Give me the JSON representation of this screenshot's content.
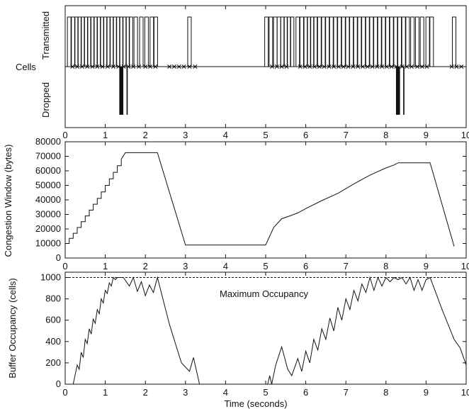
{
  "chart_data": [
    {
      "type": "event-raster",
      "panel": "cells",
      "ylabel_left": "Cells",
      "ylabel_top": "Transmitted",
      "ylabel_bottom": "Dropped",
      "xlim": [
        0,
        10
      ],
      "x_ticks": [
        "0",
        "1",
        "2",
        "3",
        "4",
        "5",
        "6",
        "7",
        "8",
        "9",
        "10"
      ],
      "transmitted_pulses": [
        0.1,
        0.2,
        0.28,
        0.36,
        0.44,
        0.52,
        0.6,
        0.68,
        0.76,
        0.84,
        0.92,
        1.0,
        1.08,
        1.16,
        1.24,
        1.32,
        1.4,
        1.48,
        1.56,
        1.64,
        1.76,
        1.9,
        2.03,
        2.16,
        2.26,
        3.1,
        5.02,
        5.13,
        5.24,
        5.33,
        5.42,
        5.5,
        5.58,
        5.66,
        5.8,
        5.9,
        6.0,
        6.08,
        6.16,
        6.24,
        6.34,
        6.44,
        6.54,
        6.64,
        6.74,
        6.84,
        6.94,
        7.04,
        7.14,
        7.24,
        7.34,
        7.44,
        7.54,
        7.64,
        7.74,
        7.84,
        7.94,
        8.04,
        8.14,
        8.24,
        8.34,
        8.44,
        8.54,
        8.66,
        8.78,
        8.9,
        9.04,
        9.14,
        9.7
      ],
      "dropped_markers": [
        0.18,
        0.3,
        0.42,
        0.55,
        0.68,
        0.8,
        0.93,
        1.06,
        1.2,
        1.33,
        1.46,
        1.58,
        1.7,
        1.84,
        2.0,
        2.12,
        2.25,
        2.6,
        2.72,
        2.84,
        2.96,
        3.1,
        3.24,
        5.16,
        5.28,
        5.4,
        5.52,
        5.86,
        5.98,
        6.1,
        6.22,
        6.34,
        6.46,
        6.58,
        6.7,
        6.82,
        6.94,
        7.06,
        7.18,
        7.3,
        7.42,
        7.54,
        7.66,
        7.78,
        7.9,
        8.02,
        8.14,
        8.26,
        8.4,
        8.52,
        8.64,
        8.78,
        8.9,
        9.02,
        9.64,
        9.76,
        9.88
      ],
      "dropped_bars": [
        {
          "x": [
            1.35,
            1.45
          ],
          "depth": 0.97
        },
        {
          "x": [
            1.53,
            1.56
          ],
          "depth": 0.97
        },
        {
          "x": [
            8.25,
            8.35
          ],
          "depth": 0.97
        },
        {
          "x": [
            8.43,
            8.46
          ],
          "depth": 0.97
        }
      ]
    },
    {
      "type": "line",
      "panel": "cwnd",
      "ylabel": "Congestion Window (bytes)",
      "xlim": [
        0,
        10
      ],
      "ylim": [
        0,
        80000
      ],
      "x_ticks": [
        "0",
        "1",
        "2",
        "3",
        "4",
        "5",
        "6",
        "7",
        "8",
        "9",
        "10"
      ],
      "y_ticks": [
        "0",
        "10000",
        "20000",
        "30000",
        "40000",
        "50000",
        "60000",
        "70000",
        "80000"
      ],
      "series": [
        {
          "x": [
            0,
            0.1,
            0.1,
            0.2,
            0.2,
            0.3,
            0.3,
            0.4,
            0.4,
            0.5,
            0.5,
            0.6,
            0.6,
            0.7,
            0.7,
            0.8,
            0.8,
            0.9,
            0.9,
            1.0,
            1.0,
            1.1,
            1.1,
            1.2,
            1.2,
            1.3,
            1.3,
            1.4,
            1.4,
            1.5,
            2.3,
            3.0,
            5.0,
            5.2,
            5.4,
            5.6,
            5.8,
            6.0,
            6.4,
            6.8,
            7.2,
            7.6,
            8.0,
            8.2,
            8.3,
            9.1,
            9.7
          ],
          "y": [
            10000,
            10000,
            13500,
            13500,
            17000,
            17000,
            21000,
            21000,
            25000,
            25000,
            29000,
            29000,
            33000,
            33000,
            37000,
            37000,
            41000,
            41000,
            45500,
            45500,
            50000,
            50000,
            54500,
            54500,
            59000,
            59000,
            63500,
            63500,
            68000,
            72500,
            72500,
            9000,
            9000,
            21000,
            27000,
            29000,
            31000,
            34000,
            39500,
            44500,
            51000,
            57000,
            62000,
            64000,
            65500,
            65500,
            8000
          ]
        }
      ]
    },
    {
      "type": "line",
      "panel": "buffer",
      "ylabel": "Buffer Occupancy (cells)",
      "xlabel": "Time (seconds)",
      "xlim": [
        0,
        10
      ],
      "ylim": [
        0,
        1050
      ],
      "x_ticks": [
        "0",
        "1",
        "2",
        "3",
        "4",
        "5",
        "6",
        "7",
        "8",
        "9",
        "10"
      ],
      "y_ticks": [
        "0",
        "200",
        "400",
        "600",
        "800",
        "1000"
      ],
      "annotation": "Maximum Occupancy",
      "max_occupancy": 1000,
      "series": [
        {
          "x": [
            0.2,
            0.3,
            0.35,
            0.4,
            0.45,
            0.5,
            0.55,
            0.6,
            0.65,
            0.7,
            0.75,
            0.8,
            0.85,
            0.9,
            0.95,
            1.0,
            1.05,
            1.1,
            1.15,
            1.2,
            1.25,
            1.3,
            1.35,
            1.4,
            1.45,
            1.6,
            1.7,
            1.8,
            1.9,
            2.0,
            2.1,
            2.2,
            2.3,
            2.6,
            2.9,
            3.1,
            3.2,
            3.35,
            5.05,
            5.1,
            5.15,
            5.25,
            5.4,
            5.55,
            5.65,
            5.8,
            5.9,
            6.0,
            6.1,
            6.2,
            6.3,
            6.4,
            6.5,
            6.6,
            6.7,
            6.8,
            6.9,
            7.0,
            7.1,
            7.2,
            7.3,
            7.4,
            7.5,
            7.6,
            7.7,
            7.8,
            7.9,
            8.0,
            8.1,
            8.2,
            8.3,
            8.4,
            8.5,
            8.6,
            8.7,
            8.8,
            8.9,
            9.0,
            9.1,
            9.4,
            9.7,
            9.85,
            10.0
          ],
          "y": [
            0,
            180,
            140,
            300,
            250,
            420,
            380,
            520,
            470,
            610,
            570,
            700,
            660,
            800,
            760,
            880,
            850,
            950,
            920,
            1000,
            980,
            1000,
            1000,
            1000,
            1000,
            920,
            1000,
            870,
            960,
            830,
            930,
            860,
            1000,
            560,
            200,
            120,
            250,
            0,
            0,
            80,
            0,
            180,
            350,
            140,
            80,
            240,
            120,
            310,
            200,
            420,
            320,
            520,
            420,
            620,
            500,
            720,
            600,
            800,
            700,
            880,
            780,
            940,
            860,
            1000,
            880,
            1000,
            920,
            1000,
            960,
            1000,
            980,
            1000,
            940,
            1000,
            880,
            980,
            880,
            980,
            1000,
            700,
            420,
            340,
            180
          ]
        }
      ]
    }
  ]
}
